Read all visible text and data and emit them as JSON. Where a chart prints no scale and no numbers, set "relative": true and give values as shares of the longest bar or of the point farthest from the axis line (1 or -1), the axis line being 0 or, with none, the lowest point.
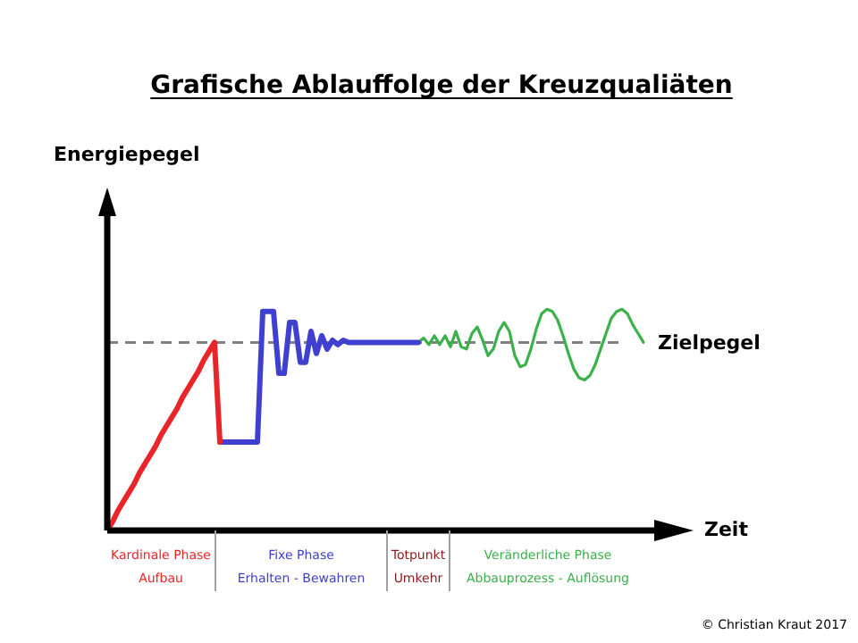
{
  "chart_data": {
    "type": "line",
    "title": "Grafische Ablauffolge der Kreuzqualiäten",
    "xlabel": "Zeit",
    "relative": true,
    "tick_labels": false,
    "marker": "none",
    "categories": [
      null,
      null,
      null,
      null,
      null,
      null,
      null,
      null,
      null,
      null,
      null,
      null,
      null,
      null,
      null,
      null,
      null,
      null,
      null,
      null,
      null,
      null,
      null,
      null,
      null,
      null,
      null,
      null,
      null,
      null,
      null,
      null,
      null,
      null,
      null,
      null,
      null,
      null,
      null,
      null,
      null,
      null,
      null,
      null,
      null,
      null,
      null,
      null,
      null,
      null,
      null,
      null,
      null,
      null,
      null,
      null,
      null,
      null,
      null,
      null,
      null,
      null,
      null,
      null,
      null,
      null,
      null,
      null,
      null,
      null,
      null,
      null,
      null,
      null,
      null,
      null,
      null,
      null,
      null,
      null,
      null,
      null,
      null,
      null,
      null,
      null,
      null,
      null,
      null,
      null,
      null,
      null,
      null,
      null,
      null,
      null,
      null,
      null,
      null,
      null,
      null
    ],
    "series": [
      {
        "color": "#e8262a",
        "values": [
          0,
          0.04,
          0.09,
          0.13,
          0.17,
          0.21,
          0.26,
          0.3,
          0.34,
          0.38,
          0.43,
          0.47,
          0.51,
          0.55,
          0.6,
          0.64,
          0.68,
          0.72,
          0.77,
          0.81,
          0.85,
          0.4,
          null,
          null,
          null,
          null,
          null,
          null,
          null,
          null,
          null,
          null,
          null,
          null,
          null,
          null,
          null,
          null,
          null,
          null,
          null,
          null,
          null,
          null,
          null,
          null,
          null,
          null,
          null,
          null,
          null,
          null,
          null,
          null,
          null,
          null,
          null,
          null,
          null,
          null,
          null,
          null,
          null,
          null,
          null,
          null,
          null,
          null,
          null,
          null,
          null,
          null,
          null,
          null,
          null,
          null,
          null,
          null,
          null,
          null,
          null,
          null,
          null,
          null,
          null,
          null,
          null,
          null,
          null,
          null,
          null,
          null,
          null,
          null,
          null,
          null,
          null,
          null,
          null,
          null,
          null
        ]
      },
      {
        "color": "#4040d0",
        "values": [
          null,
          null,
          null,
          null,
          null,
          null,
          null,
          null,
          null,
          null,
          null,
          null,
          null,
          null,
          null,
          null,
          null,
          null,
          null,
          null,
          null,
          0.4,
          0.4,
          0.4,
          0.4,
          0.4,
          0.4,
          0.4,
          0.4,
          0.99,
          0.99,
          0.99,
          0.71,
          0.71,
          0.94,
          0.94,
          0.76,
          0.76,
          0.9,
          0.8,
          0.88,
          0.82,
          0.86,
          0.84,
          0.86,
          0.85,
          0.85,
          0.85,
          0.85,
          0.85,
          0.85,
          0.85,
          0.85,
          0.85,
          0.85,
          0.85,
          0.85,
          0.85,
          0.85,
          null,
          null,
          null,
          null,
          null,
          null,
          null,
          null,
          null,
          null,
          null,
          null,
          null,
          null,
          null,
          null,
          null,
          null,
          null,
          null,
          null,
          null,
          null,
          null,
          null,
          null,
          null,
          null,
          null,
          null,
          null,
          null,
          null,
          null,
          null,
          null,
          null,
          null,
          null,
          null,
          null,
          null
        ]
      },
      {
        "color": "#3cb04a",
        "values": [
          null,
          null,
          null,
          null,
          null,
          null,
          null,
          null,
          null,
          null,
          null,
          null,
          null,
          null,
          null,
          null,
          null,
          null,
          null,
          null,
          null,
          null,
          null,
          null,
          null,
          null,
          null,
          null,
          null,
          null,
          null,
          null,
          null,
          null,
          null,
          null,
          null,
          null,
          null,
          null,
          null,
          null,
          null,
          null,
          null,
          null,
          null,
          null,
          null,
          null,
          null,
          null,
          null,
          null,
          null,
          null,
          null,
          null,
          0.85,
          0.87,
          0.84,
          0.88,
          0.84,
          0.88,
          0.83,
          0.9,
          0.83,
          0.82,
          0.89,
          0.92,
          0.86,
          0.79,
          0.82,
          0.9,
          0.94,
          0.9,
          0.79,
          0.74,
          0.75,
          0.82,
          0.91,
          0.98,
          1,
          0.99,
          0.95,
          0.88,
          0.8,
          0.73,
          0.69,
          0.68,
          0.7,
          0.75,
          0.82,
          0.89,
          0.96,
          0.99,
          1,
          0.98,
          0.93,
          0.89,
          0.85
        ]
      }
    ],
    "ref_lines": [
      {
        "axis": "y",
        "value": 0.85,
        "label": "Zielpegel",
        "color": "#808080",
        "line_style": "dashed"
      }
    ],
    "annotations": [
      "Kardinale Phase\nAufbau",
      "Fixe Phase\nErhalten - Bewahren",
      "Totpunkt\nUmkehr",
      "Veränderliche Phase\nAbbauprozess - Auflösung",
      "© Christian Kraut 2017",
      "Energiepegel"
    ]
  }
}
